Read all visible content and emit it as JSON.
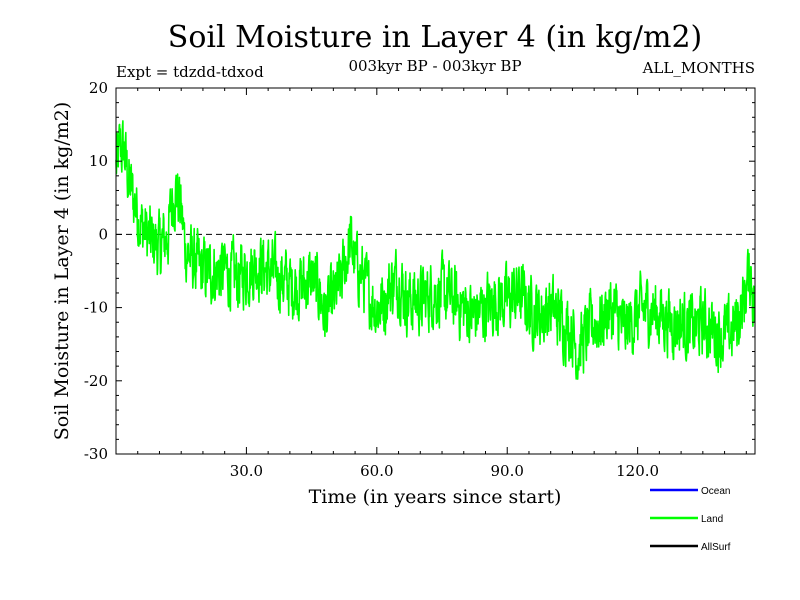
{
  "chart_data": {
    "type": "line",
    "title": "Soil Moisture in Layer 4 (in kg/m2)",
    "subtitle_left": "Expt = tdzdd-tdxod",
    "subtitle_center": "003kyr BP - 003kyr BP",
    "subtitle_right": "ALL_MONTHS",
    "xlabel": "Time (in years since start)",
    "ylabel": "Soil Moisture in Layer 4 (in kg/m2)",
    "xlim": [
      0,
      147
    ],
    "ylim": [
      -30,
      20
    ],
    "x_ticks": [
      30,
      60,
      90,
      120
    ],
    "x_tick_labels": [
      "30.0",
      "60.0",
      "90.0",
      "120.0"
    ],
    "y_ticks": [
      20,
      10,
      0,
      -10,
      -20,
      -30
    ],
    "y_tick_labels": [
      "20",
      "10",
      "0",
      "-10",
      "-20",
      "-30"
    ],
    "reference_line": 0,
    "grid": false,
    "legend_position": "bottom-right",
    "series": [
      {
        "name": "Ocean",
        "color": "#0000ff",
        "values": []
      },
      {
        "name": "Land",
        "color": "#00ff00",
        "x_step": 0.0833,
        "anchors_x": [
          0,
          1,
          2,
          3,
          4,
          5,
          6,
          7,
          8,
          9,
          10,
          12,
          13,
          14,
          15,
          16,
          18,
          20,
          22,
          25,
          28,
          30,
          33,
          35,
          38,
          40,
          43,
          45,
          47,
          48,
          50,
          52,
          53,
          54,
          55,
          57,
          58,
          60,
          62,
          63,
          65,
          67,
          70,
          73,
          75,
          78,
          80,
          82,
          85,
          87,
          90,
          93,
          95,
          98,
          100,
          103,
          105,
          106,
          108,
          110,
          112,
          113,
          115,
          117,
          120,
          122,
          125,
          128,
          130,
          133,
          135,
          137,
          140,
          142,
          144,
          145,
          146,
          147
        ],
        "anchors_y": [
          9,
          12,
          11,
          7,
          5,
          3,
          1,
          0,
          -1,
          -1,
          -2,
          0,
          5,
          6,
          3,
          -2,
          -4,
          -5,
          -5,
          -5,
          -6,
          -5,
          -4,
          -5,
          -6,
          -7,
          -7,
          -6,
          -8,
          -11,
          -9,
          -6,
          -3,
          -1,
          -4,
          -6,
          -8,
          -10,
          -9,
          -7,
          -6,
          -9,
          -9,
          -8,
          -8,
          -9,
          -10,
          -11,
          -10,
          -9,
          -9,
          -8,
          -10,
          -11,
          -10,
          -12,
          -13,
          -16,
          -14,
          -12,
          -12,
          -10,
          -11,
          -13,
          -11,
          -10,
          -11,
          -12,
          -12,
          -13,
          -12,
          -13,
          -14,
          -13,
          -10,
          -7,
          -5,
          -11
        ],
        "noise_amplitude": 2.4
      },
      {
        "name": "AllSurf",
        "color": "#000000",
        "values": []
      }
    ]
  }
}
